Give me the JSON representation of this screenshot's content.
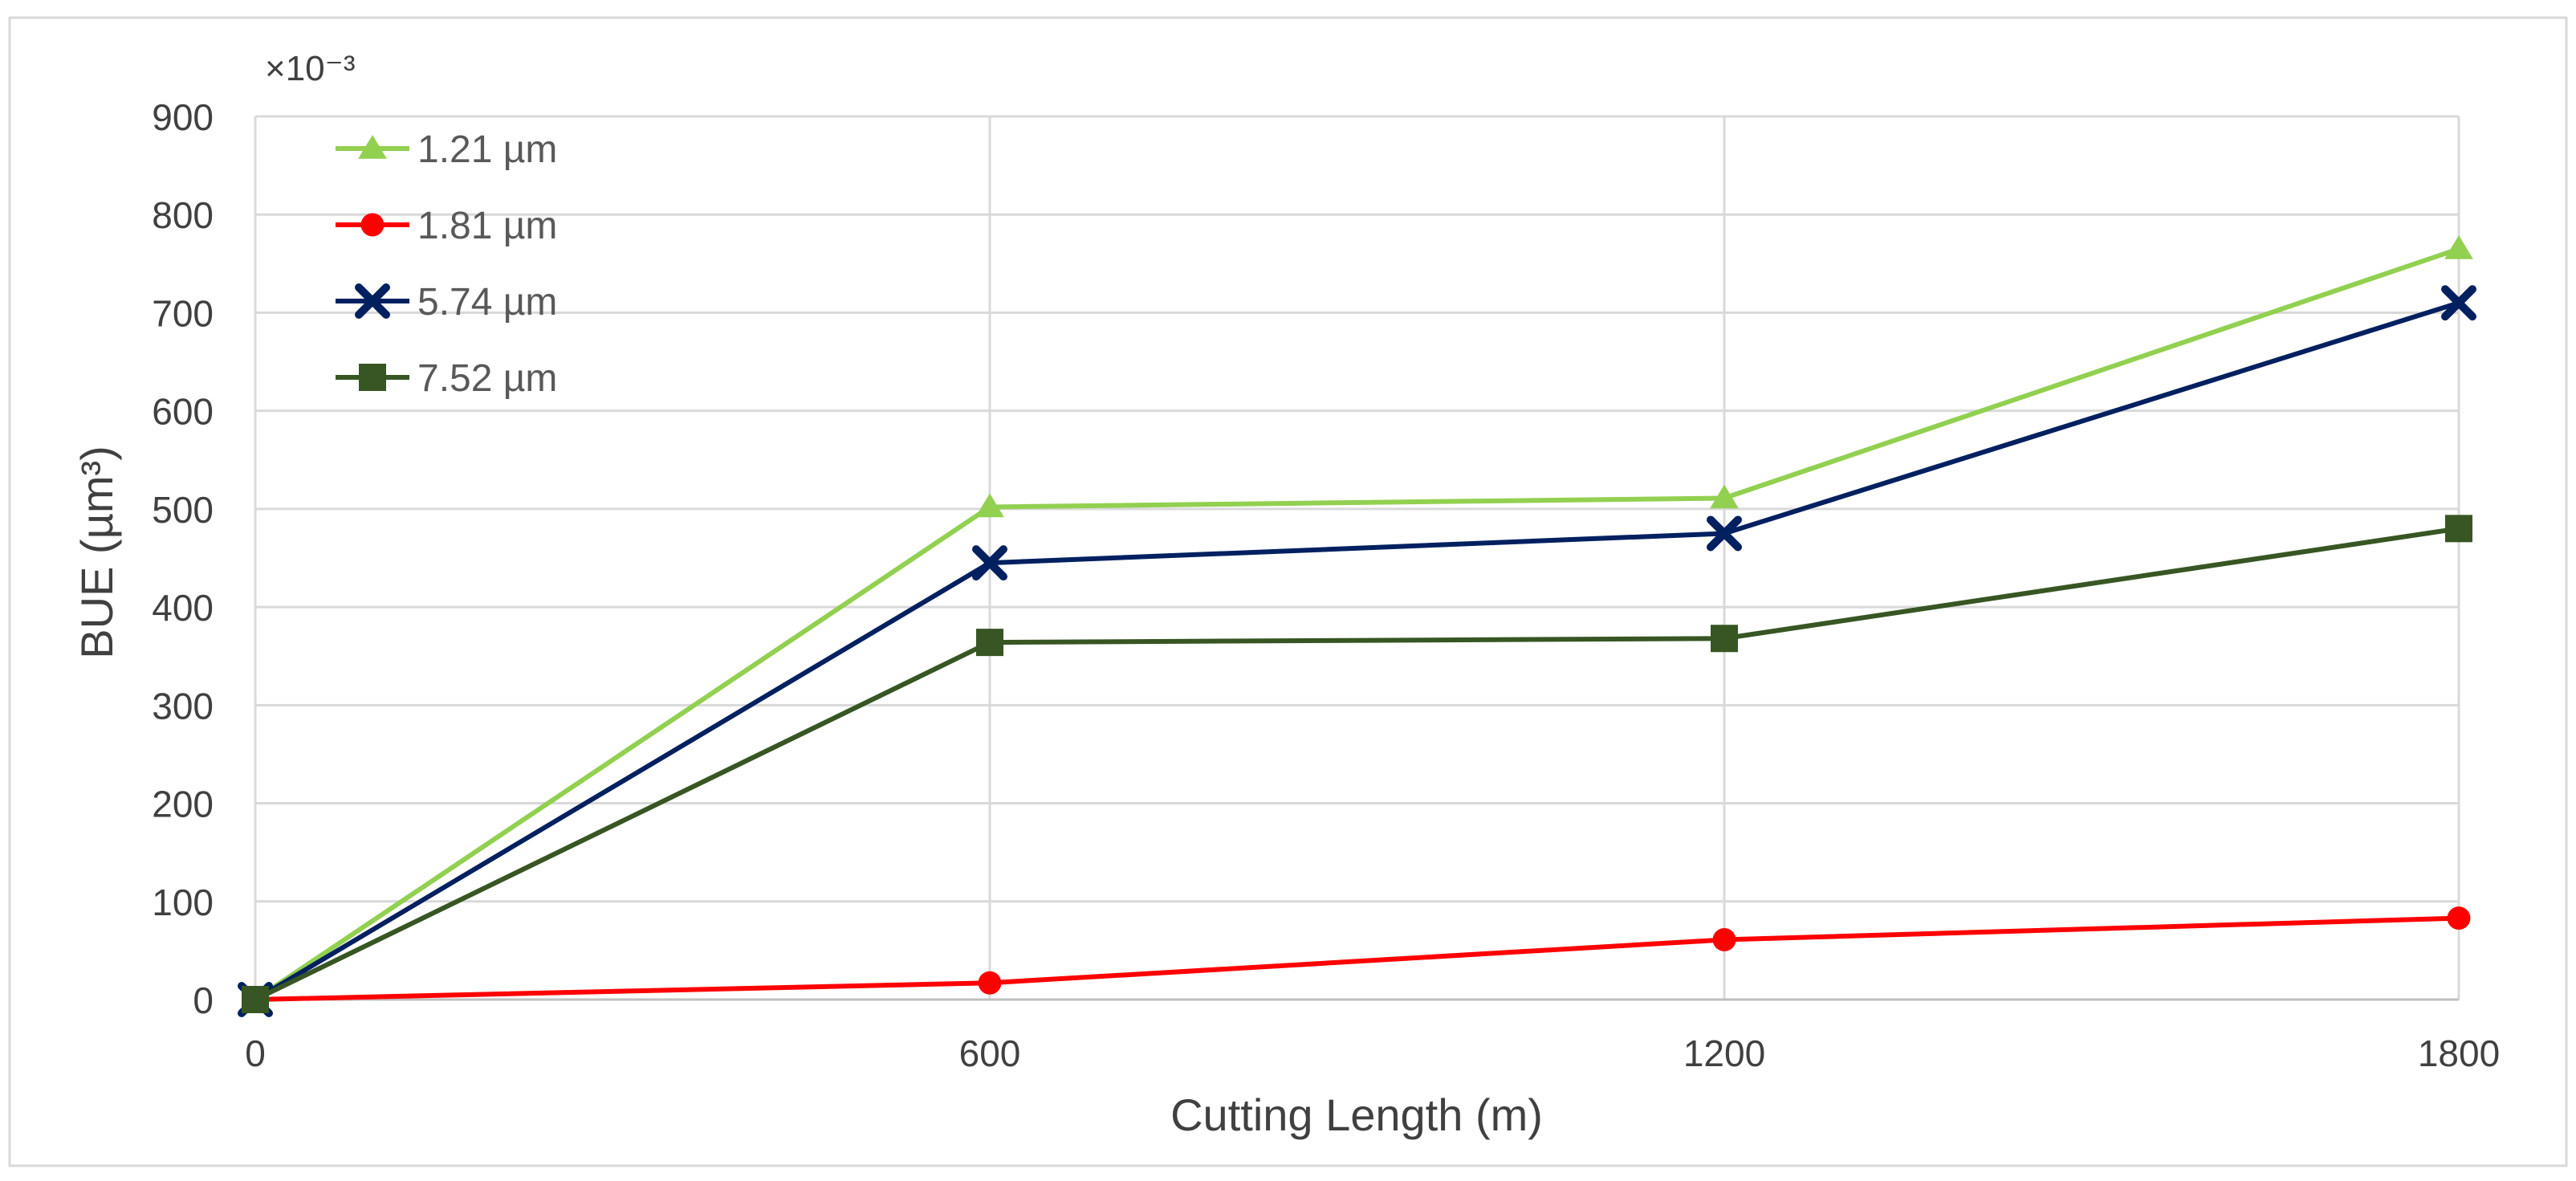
{
  "chart_data": {
    "type": "line",
    "title": "",
    "xlabel": "Cutting Length (m)",
    "ylabel": "BUE (µm³)",
    "scale_note": "×10⁻³",
    "x": [
      0,
      600,
      1200,
      1800
    ],
    "xlim": [
      0,
      1800
    ],
    "ylim": [
      0,
      900
    ],
    "yticks": [
      0,
      100,
      200,
      300,
      400,
      500,
      600,
      700,
      800,
      900
    ],
    "xticks": [
      0,
      600,
      1200,
      1800
    ],
    "grid": true,
    "legend_position": "top-left",
    "series": [
      {
        "name": "1.21 µm",
        "values": [
          0,
          502,
          511,
          765
        ],
        "color": "#92d050",
        "marker": "triangle"
      },
      {
        "name": "1.81 µm",
        "values": [
          0,
          17,
          61,
          83
        ],
        "color": "#ff0000",
        "marker": "circle"
      },
      {
        "name": "5.74 µm",
        "values": [
          0,
          445,
          475,
          710
        ],
        "color": "#002060",
        "marker": "x"
      },
      {
        "name": "7.52 µm",
        "values": [
          0,
          364,
          368,
          480
        ],
        "color": "#375623",
        "marker": "square"
      }
    ]
  }
}
